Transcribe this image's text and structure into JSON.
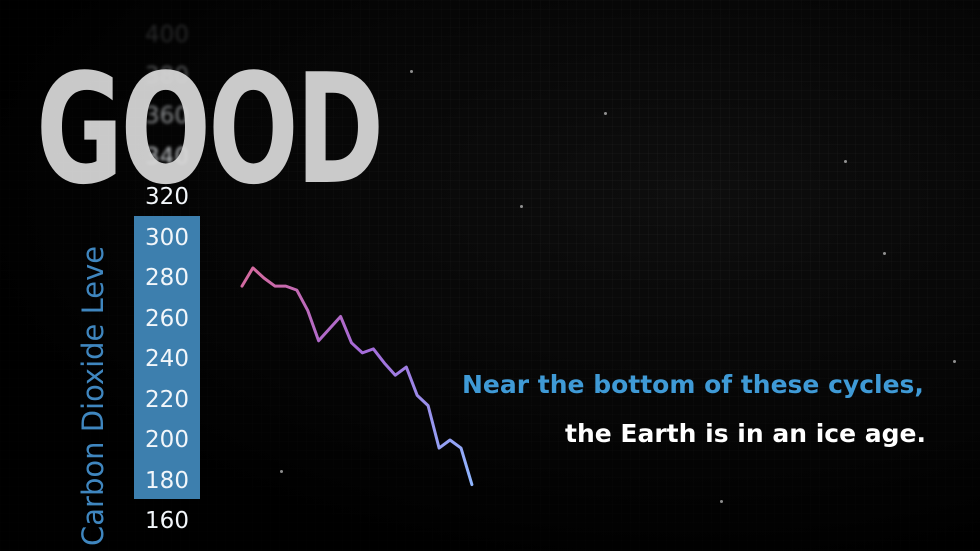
{
  "logo": "GOOD",
  "caption": {
    "line1": "Near the bottom of these cycles,",
    "line2": "the Earth is in an ice age."
  },
  "colors": {
    "accent_blue": "#3f9ad6",
    "axis_band": "#3d7fae",
    "line_start": "#d66a9c",
    "line_end": "#8fb6ff"
  },
  "chart_data": {
    "type": "line",
    "ylabel": "Carbon Dioxide Leve",
    "y_ticks": [
      "160",
      "180",
      "200",
      "220",
      "240",
      "260",
      "280",
      "300",
      "320",
      "340",
      "360",
      "380",
      "400"
    ],
    "ylim": [
      160,
      400
    ],
    "series": [
      {
        "points": [
          [
            0,
            276
          ],
          [
            1,
            285
          ],
          [
            2,
            280
          ],
          [
            3,
            276
          ],
          [
            4,
            276
          ],
          [
            5,
            274
          ],
          [
            6,
            264
          ],
          [
            7,
            249
          ],
          [
            8,
            255
          ],
          [
            9,
            261
          ],
          [
            10,
            248
          ],
          [
            11,
            243
          ],
          [
            12,
            245
          ],
          [
            13,
            238
          ],
          [
            14,
            232
          ],
          [
            15,
            236
          ],
          [
            16,
            222
          ],
          [
            17,
            217
          ],
          [
            18,
            196
          ],
          [
            19,
            200
          ],
          [
            20,
            196
          ],
          [
            21,
            178
          ]
        ]
      }
    ]
  }
}
